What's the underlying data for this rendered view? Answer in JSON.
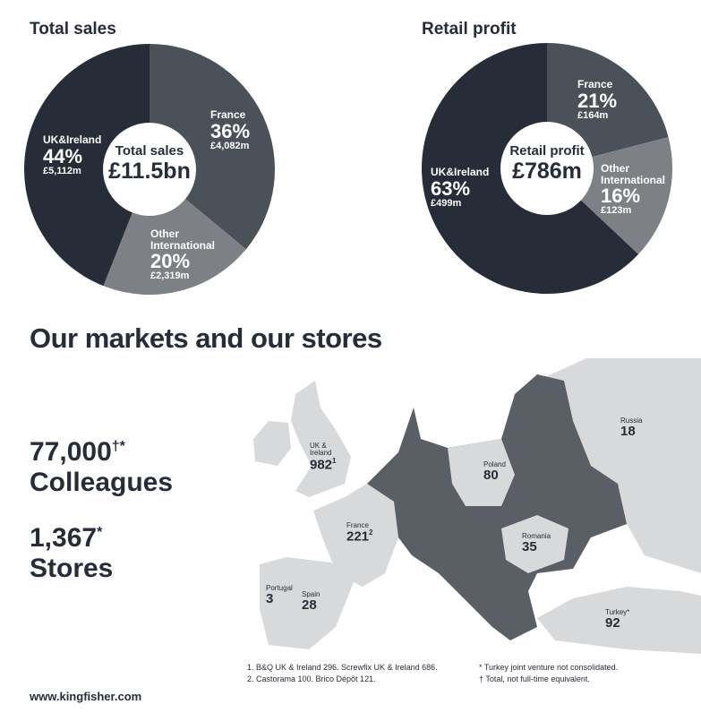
{
  "chart_data": [
    {
      "type": "pie",
      "title": "Total sales",
      "center_label": "Total sales",
      "center_value": "£11.5bn",
      "slices": [
        {
          "name": "France",
          "percent": 36,
          "value": "£4,082m",
          "color": "#4b5159"
        },
        {
          "name": "Other International",
          "percent": 20,
          "value": "£2,319m",
          "color": "#7d8186"
        },
        {
          "name": "UK&Ireland",
          "percent": 44,
          "value": "£5,112m",
          "color": "#262d38"
        }
      ]
    },
    {
      "type": "pie",
      "title": "Retail profit",
      "center_label": "Retail profit",
      "center_value": "£786m",
      "slices": [
        {
          "name": "France",
          "percent": 21,
          "value": "£164m",
          "color": "#4b5159"
        },
        {
          "name": "Other International",
          "percent": 16,
          "value": "£123m",
          "color": "#7d8186"
        },
        {
          "name": "UK&Ireland",
          "percent": 63,
          "value": "£499m",
          "color": "#262d38"
        }
      ]
    }
  ],
  "markets": {
    "title": "Our markets and our stores",
    "colleagues_value": "77,000",
    "colleagues_mark": "†*",
    "colleagues_label": "Colleagues",
    "stores_value": "1,367",
    "stores_mark": "*",
    "stores_label": "Stores",
    "countries": [
      {
        "name": "UK & Ireland",
        "count": "982",
        "mark": "1"
      },
      {
        "name": "France",
        "count": "221",
        "mark": "2"
      },
      {
        "name": "Portugal",
        "count": "3",
        "mark": ""
      },
      {
        "name": "Spain",
        "count": "28",
        "mark": ""
      },
      {
        "name": "Poland",
        "count": "80",
        "mark": ""
      },
      {
        "name": "Romania",
        "count": "35",
        "mark": ""
      },
      {
        "name": "Russia",
        "count": "18",
        "mark": ""
      },
      {
        "name": "Turkey*",
        "count": "92",
        "mark": ""
      }
    ],
    "colors": {
      "market": "#d8d9db",
      "other": "#5a5f66"
    },
    "notes": [
      "1.  B&Q UK & Ireland 296. Screwfix UK & Ireland 686.",
      "2.  Castorama 100. Brico Dépôt 121."
    ],
    "notes_right": [
      "* Turkey joint venture not consolidated.",
      "† Total, not full-time equivalent."
    ]
  },
  "footer": {
    "url": "www.kingfisher.com"
  }
}
